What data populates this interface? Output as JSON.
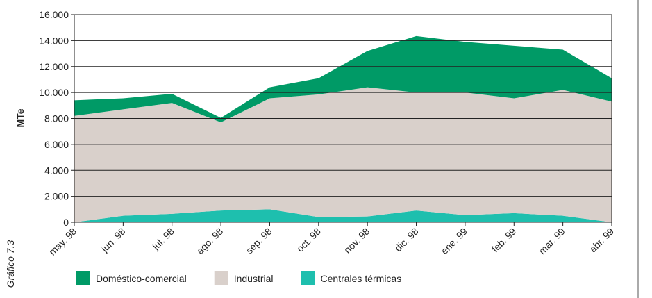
{
  "chart_data": {
    "type": "stacked_area",
    "ylabel": "MTe",
    "side_label": "Gráfico 7.3",
    "categories": [
      "may. 98",
      "jun. 98",
      "jul. 98",
      "ago. 98",
      "sep. 98",
      "oct. 98",
      "nov. 98",
      "dic. 98",
      "ene. 99",
      "feb. 99",
      "mar. 99",
      "abr. 99"
    ],
    "series": [
      {
        "name": "Centrales térmicas",
        "color": "#1ebfae",
        "values": [
          0,
          500,
          650,
          900,
          1000,
          400,
          450,
          900,
          550,
          700,
          500,
          0
        ]
      },
      {
        "name": "Industrial",
        "color": "#d9d0cb",
        "values": [
          8200,
          8200,
          8550,
          6800,
          8550,
          9450,
          9950,
          9100,
          9450,
          8850,
          9700,
          9300
        ]
      },
      {
        "name": "Doméstico-comercial",
        "color": "#009a66",
        "values": [
          1200,
          850,
          700,
          350,
          850,
          1250,
          2800,
          4350,
          3900,
          4050,
          3100,
          1800
        ]
      }
    ],
    "legend_order": [
      2,
      1,
      0
    ],
    "ylim": [
      0,
      16000
    ],
    "yticks": [
      0,
      {
        "value": 2000,
        "label": "2.000"
      },
      {
        "value": 4000,
        "label": "4.000"
      },
      {
        "value": 6000,
        "label": "6.000"
      },
      {
        "value": 8000,
        "label": "8.000"
      },
      {
        "value": 10000,
        "label": "10.000"
      },
      {
        "value": 12000,
        "label": "12.000"
      },
      {
        "value": 14000,
        "label": "14.000"
      },
      {
        "value": 16000,
        "label": "16.000"
      }
    ],
    "grid": true
  }
}
